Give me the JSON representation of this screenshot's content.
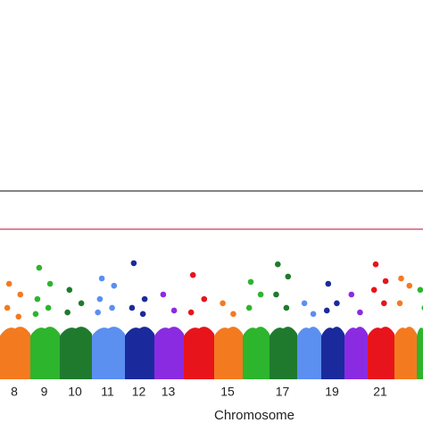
{
  "chart_data": {
    "type": "scatter",
    "x_label": "Chromosome",
    "ylim": [
      0,
      10
    ],
    "hlines": [
      {
        "value": 5,
        "color": "#3a3a3a"
      },
      {
        "value": 4,
        "color": "#c9506b"
      }
    ],
    "categories": [
      "8",
      "9",
      "10",
      "11",
      "12",
      "13",
      null,
      "15",
      null,
      "17",
      null,
      "19",
      null,
      "21",
      null,
      null
    ],
    "series": [
      {
        "color": "#f47a20",
        "bulk": 1.4,
        "values": [
          2.57,
          2.29,
          1.94,
          1.71
        ]
      },
      {
        "color": "#2db52d",
        "bulk": 1.4,
        "values": [
          2.99,
          2.57,
          2.17,
          1.94,
          1.78
        ]
      },
      {
        "color": "#1f7a2e",
        "bulk": 1.4,
        "values": [
          2.41,
          2.06,
          1.82
        ]
      },
      {
        "color": "#5b8ff0",
        "bulk": 1.4,
        "values": [
          2.71,
          2.52,
          2.17,
          1.94,
          1.82
        ]
      },
      {
        "color": "#1a2a9c",
        "bulk": 1.4,
        "values": [
          3.11,
          2.17,
          1.94,
          1.78
        ]
      },
      {
        "color": "#8a2be2",
        "bulk": 1.4,
        "values": [
          2.29,
          1.87
        ]
      },
      {
        "color": "#e8141c",
        "bulk": 1.4,
        "values": [
          2.8,
          2.17,
          1.82
        ]
      },
      {
        "color": "#f47a20",
        "bulk": 1.4,
        "values": [
          2.06,
          1.78
        ]
      },
      {
        "color": "#2db52d",
        "bulk": 1.4,
        "values": [
          2.62,
          2.29,
          1.94
        ]
      },
      {
        "color": "#1f7a2e",
        "bulk": 1.4,
        "values": [
          3.08,
          2.76,
          2.29,
          1.94
        ]
      },
      {
        "color": "#5b8ff0",
        "bulk": 1.4,
        "values": [
          2.06,
          1.78
        ]
      },
      {
        "color": "#1a2a9c",
        "bulk": 1.4,
        "values": [
          2.57,
          2.06,
          1.87
        ]
      },
      {
        "color": "#8a2be2",
        "bulk": 1.4,
        "values": [
          2.29,
          1.82
        ]
      },
      {
        "color": "#e8141c",
        "bulk": 1.4,
        "values": [
          3.08,
          2.64,
          2.41,
          2.06
        ]
      },
      {
        "color": "#f47a20",
        "bulk": 1.4,
        "values": [
          2.71,
          2.52,
          2.06
        ]
      },
      {
        "color": "#2db52d",
        "bulk": 1.4,
        "values": [
          2.41,
          1.94
        ]
      }
    ]
  }
}
